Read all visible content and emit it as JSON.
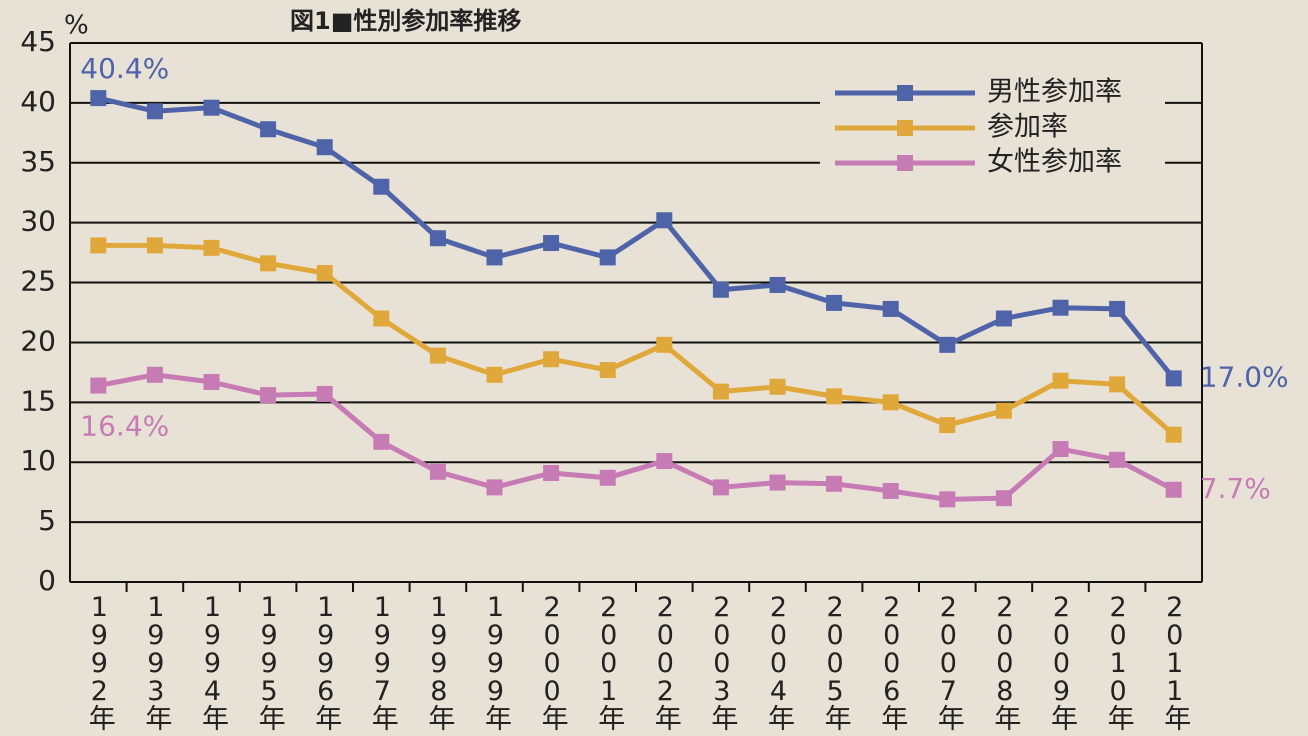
{
  "chart_data": {
    "type": "line",
    "title": "図1■性別参加率推移",
    "y_label": "%",
    "categories": [
      "1992年",
      "1993年",
      "1994年",
      "1995年",
      "1996年",
      "1997年",
      "1998年",
      "1999年",
      "2000年",
      "2001年",
      "2002年",
      "2003年",
      "2004年",
      "2005年",
      "2006年",
      "2007年",
      "2008年",
      "2009年",
      "2010年",
      "2011年"
    ],
    "series": [
      {
        "name": "男性参加率",
        "color": "#4f63a8",
        "values": [
          40.4,
          39.3,
          39.6,
          37.8,
          36.3,
          33.0,
          28.7,
          27.1,
          28.3,
          27.1,
          30.2,
          24.4,
          24.8,
          23.3,
          22.8,
          19.8,
          22.0,
          22.9,
          22.8,
          17.0
        ],
        "value_labels": [
          "40.4%",
          null,
          null,
          null,
          null,
          null,
          null,
          null,
          null,
          null,
          null,
          null,
          null,
          null,
          null,
          null,
          null,
          null,
          null,
          "17.0%"
        ]
      },
      {
        "name": "参加率",
        "color": "#e0a83a",
        "values": [
          28.1,
          28.1,
          27.9,
          26.6,
          25.8,
          22.0,
          18.9,
          17.3,
          18.6,
          17.7,
          19.8,
          15.9,
          16.3,
          15.5,
          15.0,
          13.1,
          14.3,
          16.8,
          16.5,
          12.3
        ]
      },
      {
        "name": "女性参加率",
        "color": "#c77bb5",
        "values": [
          16.4,
          17.3,
          16.7,
          15.6,
          15.7,
          11.7,
          9.2,
          7.9,
          9.1,
          8.7,
          10.1,
          7.9,
          8.3,
          8.2,
          7.6,
          6.9,
          7.0,
          11.1,
          10.2,
          7.7
        ],
        "value_labels": [
          "16.4%",
          null,
          null,
          null,
          null,
          null,
          null,
          null,
          null,
          null,
          null,
          null,
          null,
          null,
          null,
          null,
          null,
          null,
          null,
          "7.7%"
        ]
      }
    ],
    "ylim": [
      0,
      45
    ],
    "yticks": [
      0,
      5,
      10,
      15,
      20,
      25,
      30,
      35,
      40,
      45
    ],
    "grid": true,
    "legend": "upper right"
  }
}
